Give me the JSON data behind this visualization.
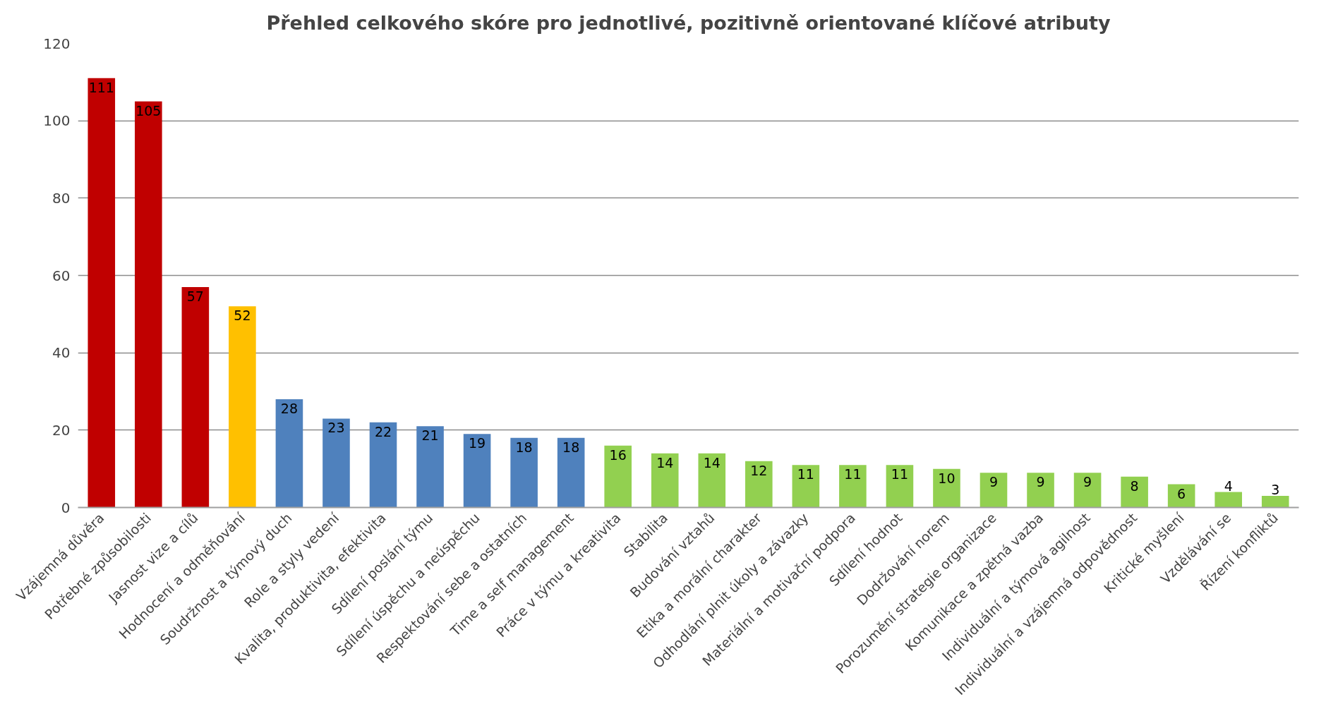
{
  "chart_data": {
    "type": "bar",
    "title": "Přehled celkového skóre pro jednotlivé, pozitivně orientované klíčové atributy",
    "categories": [
      "Vzájemná důvěra",
      "Potřebné způsobilosti",
      "Jasnost vize a cílů",
      "Hodnocení a odměňování",
      "Soudržnost a týmový duch",
      "Role a styly vedení",
      "Kvalita, produktivita, efektivita",
      "Sdílení poslání týmu",
      "Sdílení úspěchu a neúspěchu",
      "Respektování sebe a ostatních",
      "Time a self management",
      "Práce v týmu a kreativita",
      "Stabilita",
      "Budování vztahů",
      "Etika a morální charakter",
      "Odhodlání plnit úkoly a závazky",
      "Materiální a motivační podpora",
      "Sdílení hodnot",
      "Dodržování norem",
      "Porozumění strategie organizace",
      "Komunikace a zpětná vazba",
      "Individuální a týmová agilnost",
      "Individuální a vzájemná odpovědnost",
      "Kritické myšlení",
      "Vzdělávání se",
      "Řízení konfliktů"
    ],
    "values": [
      111,
      105,
      57,
      52,
      28,
      23,
      22,
      21,
      19,
      18,
      18,
      16,
      14,
      14,
      12,
      11,
      11,
      11,
      10,
      9,
      9,
      9,
      8,
      6,
      4,
      3
    ],
    "colors": [
      "#c00000",
      "#c00000",
      "#c00000",
      "#ffc000",
      "#4f81bd",
      "#4f81bd",
      "#4f81bd",
      "#4f81bd",
      "#4f81bd",
      "#4f81bd",
      "#4f81bd",
      "#92d050",
      "#92d050",
      "#92d050",
      "#92d050",
      "#92d050",
      "#92d050",
      "#92d050",
      "#92d050",
      "#92d050",
      "#92d050",
      "#92d050",
      "#92d050",
      "#92d050",
      "#92d050",
      "#92d050"
    ],
    "ylim": [
      0,
      120
    ],
    "yticks": [
      0,
      20,
      40,
      60,
      80,
      100,
      120
    ],
    "grid": "y",
    "data_labels": true
  }
}
